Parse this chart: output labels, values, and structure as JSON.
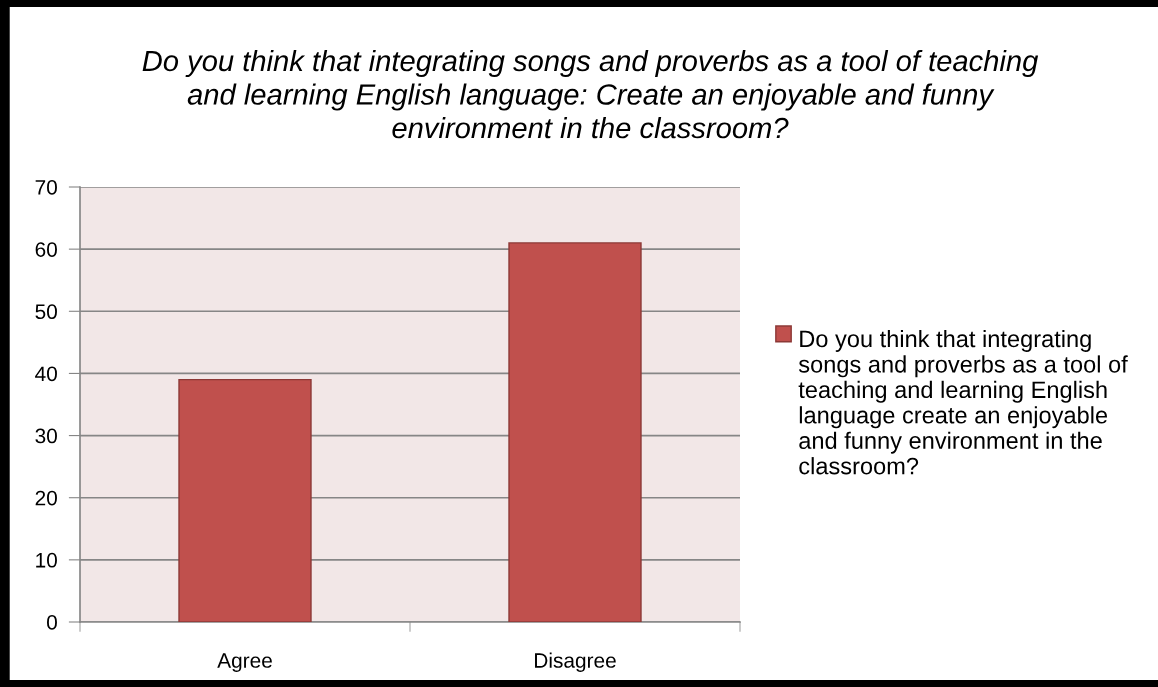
{
  "chart_data": {
    "type": "bar",
    "title": "Do you think that integrating songs and proverbs as a tool of teaching and learning English language: Create an enjoyable and funny environment in the classroom?",
    "categories": [
      "Agree",
      "Disagree"
    ],
    "series": [
      {
        "name": "Do you think that integrating songs and proverbs as a tool of teaching and learning English language create an enjoyable and funny environment in the classroom?",
        "color": "#c0504d",
        "values": [
          39,
          61
        ]
      }
    ],
    "ylim": [
      0,
      70
    ],
    "yticks": [
      0,
      10,
      20,
      30,
      40,
      50,
      60,
      70
    ],
    "grid": "y",
    "legend": "right"
  }
}
